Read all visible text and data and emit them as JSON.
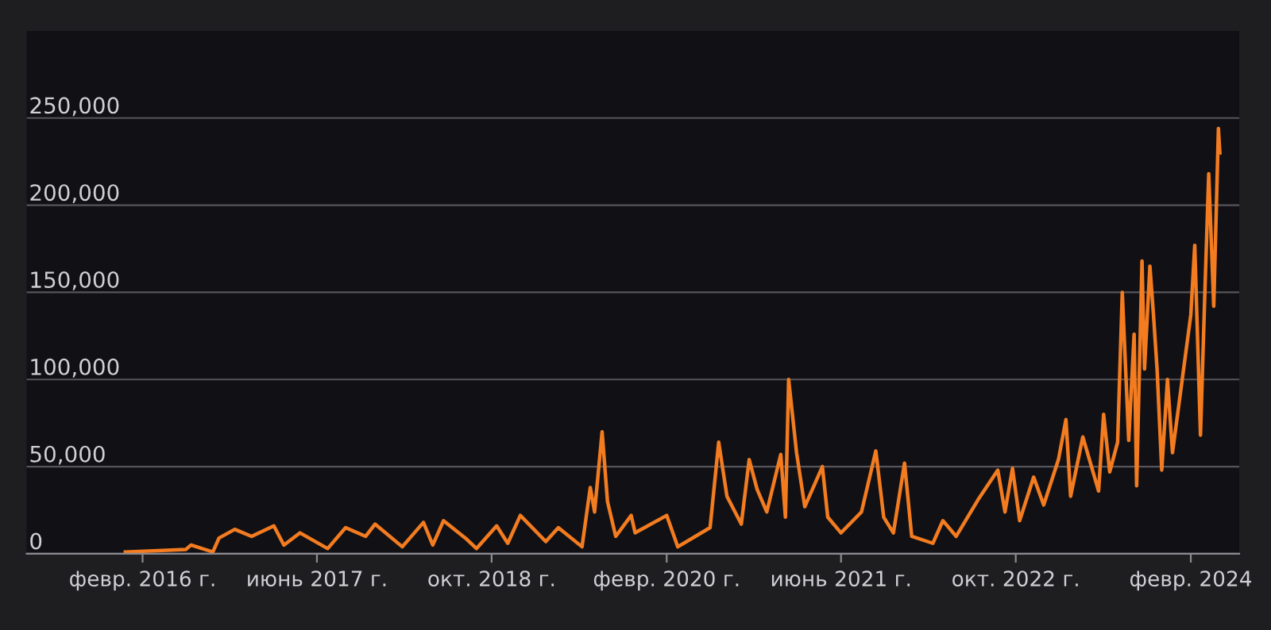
{
  "chart_data": {
    "type": "line",
    "x": [
      "2015-12-15",
      "2016-06-01",
      "2016-06-15",
      "2016-08-15",
      "2016-09-01",
      "2016-10-15",
      "2016-12-01",
      "2017-02-01",
      "2017-03-01",
      "2017-04-15",
      "2017-07-01",
      "2017-08-20",
      "2017-10-15",
      "2017-11-10",
      "2018-01-25",
      "2018-03-25",
      "2018-04-20",
      "2018-05-20",
      "2018-07-20",
      "2018-08-20",
      "2018-10-15",
      "2018-11-15",
      "2018-12-20",
      "2019-03-01",
      "2019-04-05",
      "2019-06-10",
      "2019-07-03",
      "2019-07-15",
      "2019-08-05",
      "2019-08-20",
      "2019-09-12",
      "2019-10-25",
      "2019-11-05",
      "2020-02-01",
      "2020-03-03",
      "2020-06-01",
      "2020-06-25",
      "2020-07-18",
      "2020-08-27",
      "2020-09-18",
      "2020-10-10",
      "2020-11-06",
      "2020-12-15",
      "2020-12-28",
      "2021-01-06",
      "2021-01-28",
      "2021-02-20",
      "2021-04-10",
      "2021-04-25",
      "2021-06-01",
      "2021-07-28",
      "2021-09-06",
      "2021-09-28",
      "2021-10-25",
      "2021-11-25",
      "2021-12-15",
      "2022-02-12",
      "2022-03-12",
      "2022-04-18",
      "2022-06-18",
      "2022-08-12",
      "2022-09-01",
      "2022-09-22",
      "2022-10-12",
      "2022-11-20",
      "2022-12-18",
      "2023-01-28",
      "2023-02-18",
      "2023-03-03",
      "2023-04-06",
      "2023-05-20",
      "2023-06-03",
      "2023-06-20",
      "2023-07-12",
      "2023-07-25",
      "2023-08-12",
      "2023-08-27",
      "2023-09-03",
      "2023-09-18",
      "2023-09-25",
      "2023-10-10",
      "2023-10-20",
      "2023-10-30",
      "2023-11-12",
      "2023-11-28",
      "2023-12-12",
      "2024-02-01",
      "2024-02-12",
      "2024-02-28",
      "2024-03-12",
      "2024-03-22",
      "2024-04-05",
      "2024-04-18",
      "2024-04-22"
    ],
    "series": [
      {
        "color": "#f47c20",
        "values": [
          1000,
          2500,
          5000,
          1000,
          9000,
          14000,
          10000,
          16000,
          5000,
          12000,
          3000,
          15000,
          10000,
          17000,
          4000,
          18000,
          5000,
          19000,
          9000,
          3000,
          16000,
          6000,
          22000,
          7000,
          15000,
          4000,
          38000,
          24000,
          70000,
          30000,
          10000,
          22000,
          12000,
          22000,
          4000,
          15000,
          64000,
          33000,
          17000,
          54000,
          37000,
          24000,
          57000,
          21000,
          100000,
          58000,
          27000,
          50000,
          21000,
          12000,
          24000,
          59000,
          21000,
          12000,
          52000,
          10000,
          6000,
          19000,
          10000,
          31000,
          48000,
          24000,
          49000,
          19000,
          44000,
          28000,
          54000,
          77000,
          33000,
          67000,
          36000,
          80000,
          47000,
          64000,
          150000,
          65000,
          126000,
          39000,
          168000,
          106000,
          165000,
          137000,
          106000,
          48000,
          100000,
          58000,
          137000,
          177000,
          68000,
          155000,
          218000,
          142000,
          244000,
          230000
        ]
      }
    ],
    "xlim": [
      "2015-03-15",
      "2024-06-15"
    ],
    "xticks": [
      {
        "value": "2016-02-01",
        "label": "февр. 2016 г."
      },
      {
        "value": "2017-06-01",
        "label": "июнь 2017 г."
      },
      {
        "value": "2018-10-01",
        "label": "окт. 2018 г."
      },
      {
        "value": "2020-02-01",
        "label": "февр. 2020 г."
      },
      {
        "value": "2021-06-01",
        "label": "июнь 2021 г."
      },
      {
        "value": "2022-10-01",
        "label": "окт. 2022 г."
      },
      {
        "value": "2024-02-01",
        "label": "февр. 2024"
      }
    ],
    "ylim": [
      0,
      300000
    ],
    "yticks": [
      {
        "value": 0,
        "label": "0"
      },
      {
        "value": 50000,
        "label": "50,000"
      },
      {
        "value": 100000,
        "label": "100,000"
      },
      {
        "value": 150000,
        "label": "150,000"
      },
      {
        "value": 200000,
        "label": "200,000"
      },
      {
        "value": 250000,
        "label": "250,000"
      }
    ],
    "grid": "y",
    "marker": "none",
    "line_style": "solid"
  }
}
